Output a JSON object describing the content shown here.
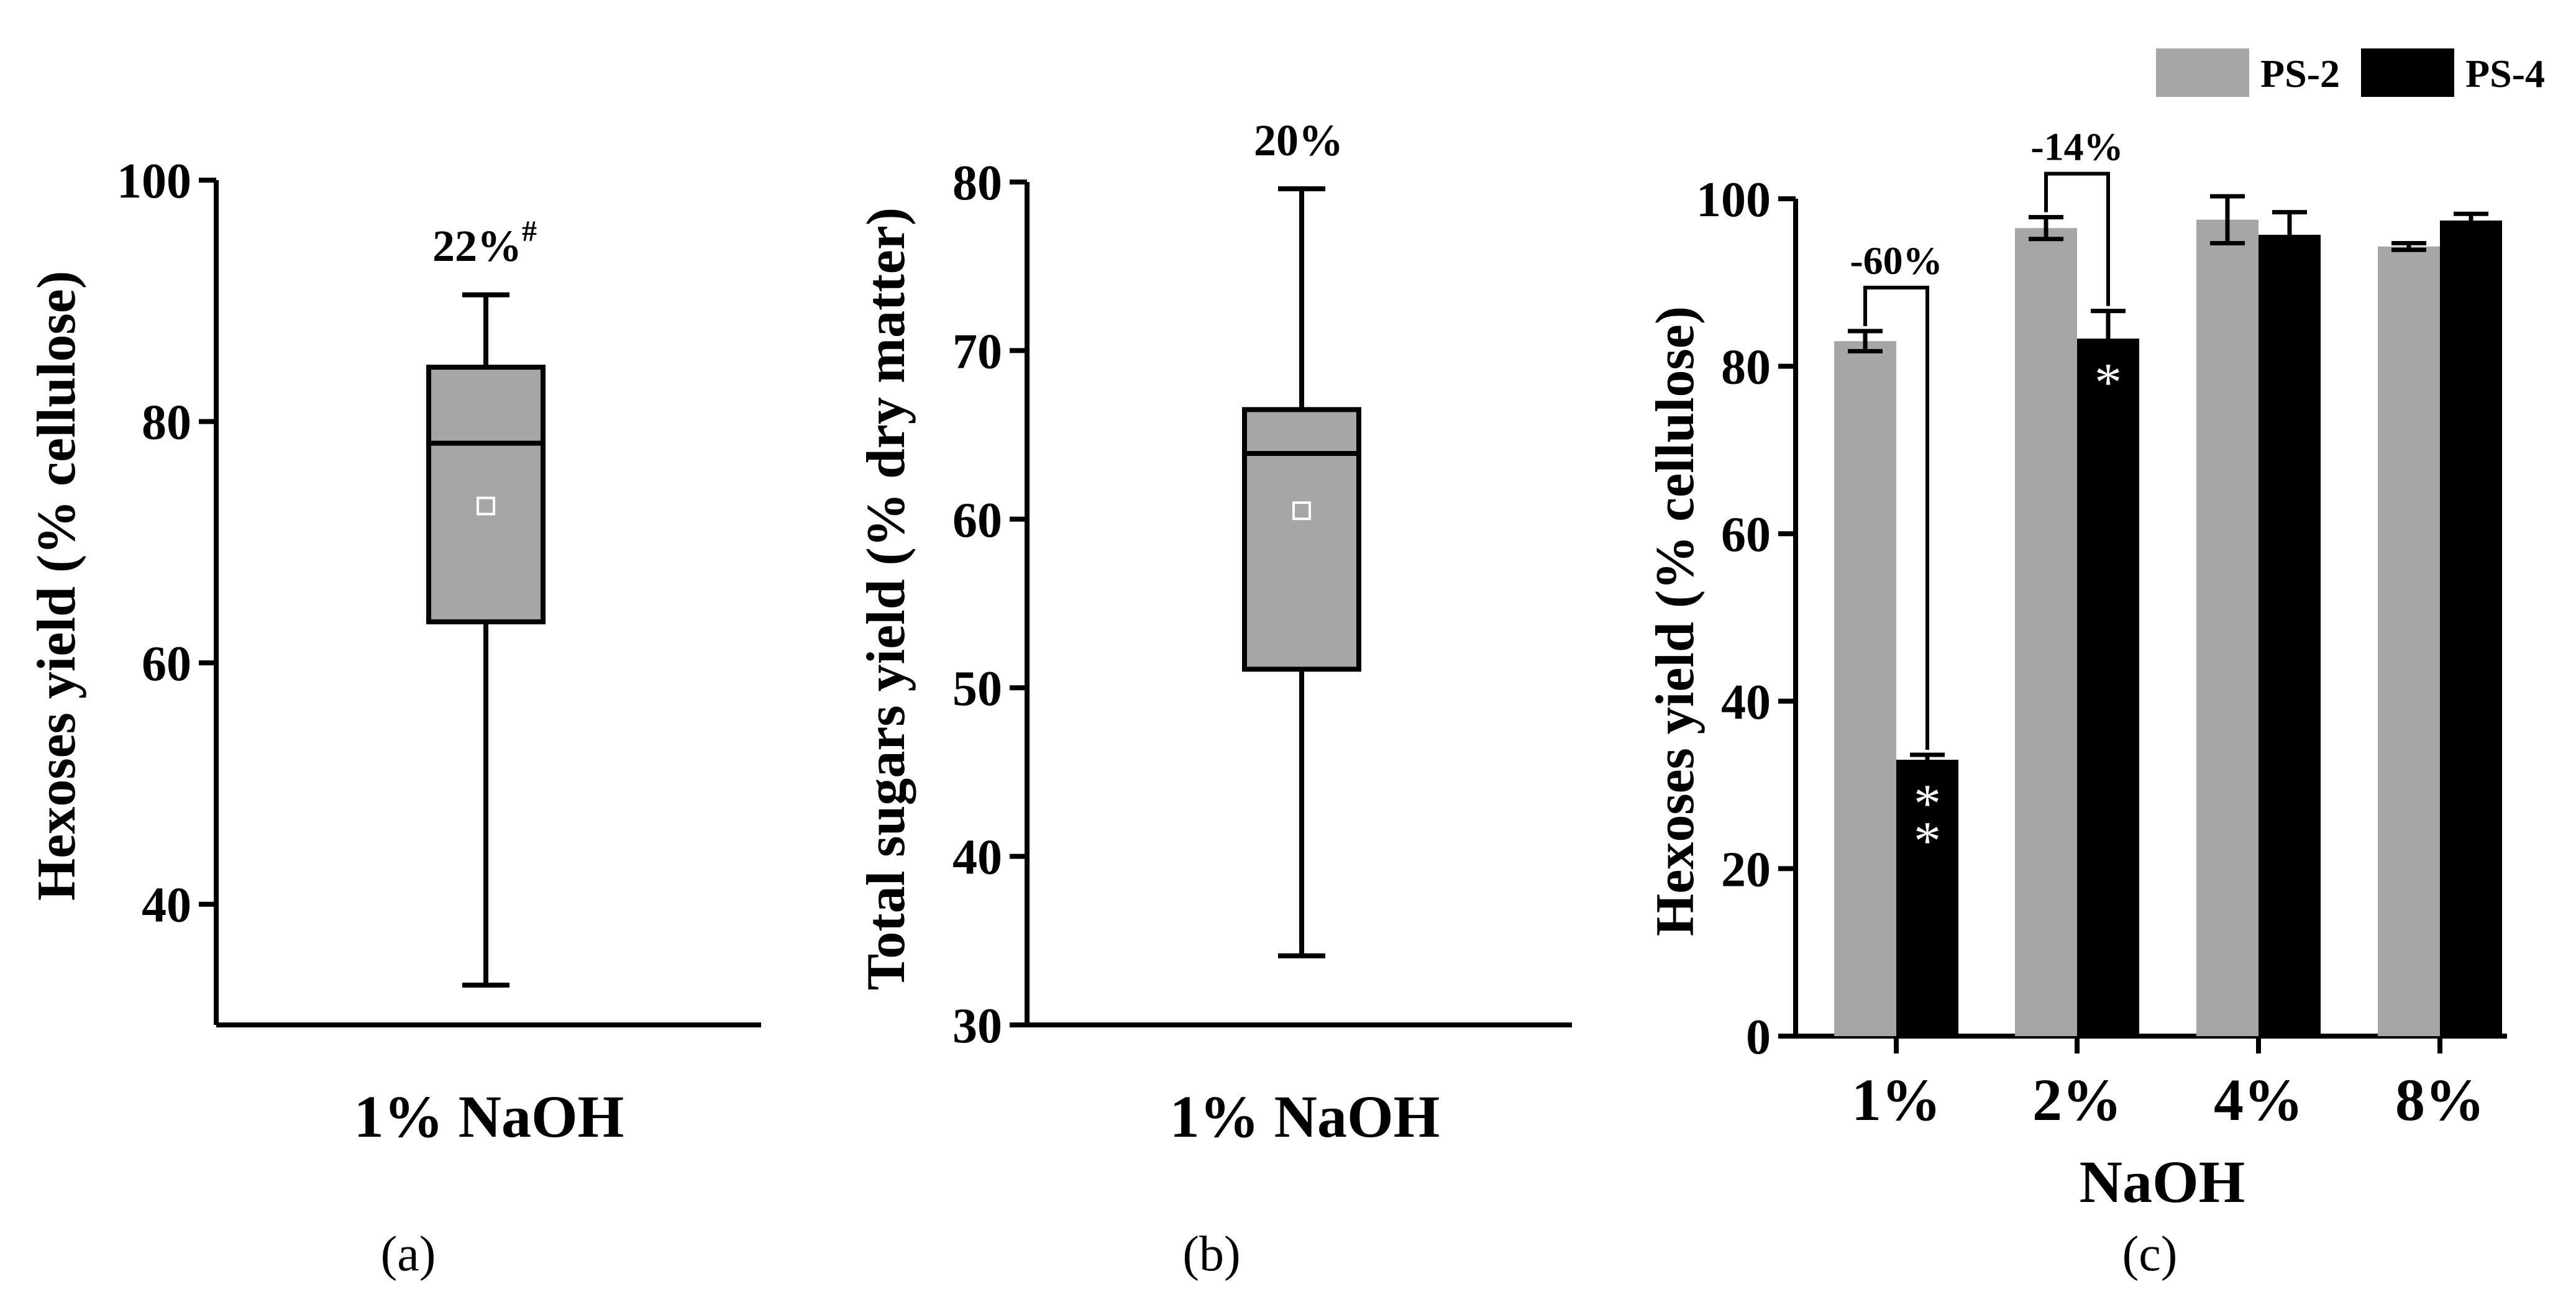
{
  "chart_data": [
    {
      "panel": "(a)",
      "type": "box",
      "ylabel": "Hexoses yield (% cellulose)",
      "ylim": [
        30,
        100
      ],
      "yticks": [
        40,
        60,
        80,
        100
      ],
      "category": "1% NaOH",
      "box": {
        "min": 33.3,
        "q1": 63.4,
        "median": 78.2,
        "q3": 84.5,
        "max": 90.5,
        "mean": 73.0
      },
      "annotation": {
        "text": "22%",
        "sup": "#"
      }
    },
    {
      "panel": "(b)",
      "type": "box",
      "ylabel": "Total sugars yield (% dry matter)",
      "ylim": [
        30,
        80
      ],
      "yticks": [
        30,
        40,
        50,
        60,
        70,
        80
      ],
      "category": "1% NaOH",
      "box": {
        "min": 34.1,
        "q1": 51.1,
        "median": 63.9,
        "q3": 66.5,
        "max": 79.6,
        "mean": 60.5
      },
      "annotation": {
        "text": "20%"
      }
    },
    {
      "panel": "(c)",
      "type": "bar",
      "xlabel": "NaOH",
      "ylabel": "Hexoses yield (% cellulose)",
      "ylim": [
        0,
        100
      ],
      "yticks": [
        0,
        20,
        40,
        60,
        80,
        100
      ],
      "categories": [
        "1%",
        "2%",
        "4%",
        "8%"
      ],
      "series": [
        {
          "name": "PS-2",
          "color": "#a6a6a6",
          "values": [
            83.0,
            96.5,
            97.5,
            94.3
          ],
          "errors": [
            1.2,
            1.3,
            2.8,
            0.4
          ]
        },
        {
          "name": "PS-4",
          "color": "#000000",
          "values": [
            33.0,
            83.3,
            95.7,
            97.4
          ],
          "errors": [
            0.6,
            3.3,
            2.7,
            0.8
          ]
        }
      ],
      "significance": [
        {
          "category": "1%",
          "series": "PS-4",
          "text": "**"
        },
        {
          "category": "2%",
          "series": "PS-4",
          "text": "*"
        }
      ],
      "brackets": [
        {
          "category": "1%",
          "text": "-60%"
        },
        {
          "category": "2%",
          "text": "-14%"
        }
      ],
      "legend_position": "top-right"
    }
  ]
}
